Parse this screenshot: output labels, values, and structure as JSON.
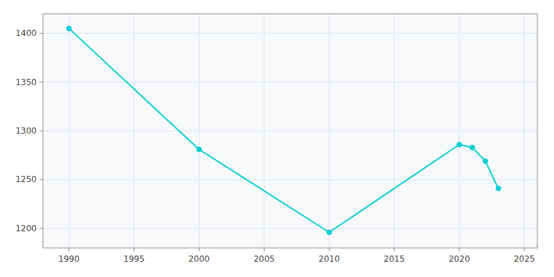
{
  "chart_data": {
    "type": "line",
    "x": [
      1990,
      2000,
      2010,
      2020,
      2021,
      2022,
      2023
    ],
    "values": [
      1405,
      1281,
      1196,
      1286,
      1283,
      1269,
      1241
    ],
    "color": "#00CED1",
    "marker": "circle",
    "xlim": [
      1988,
      2026
    ],
    "ylim": [
      1180,
      1420
    ],
    "xticks": [
      1990,
      1995,
      2000,
      2005,
      2010,
      2015,
      2020,
      2025
    ],
    "yticks": [
      1200,
      1250,
      1300,
      1350,
      1400
    ],
    "grid": true
  }
}
